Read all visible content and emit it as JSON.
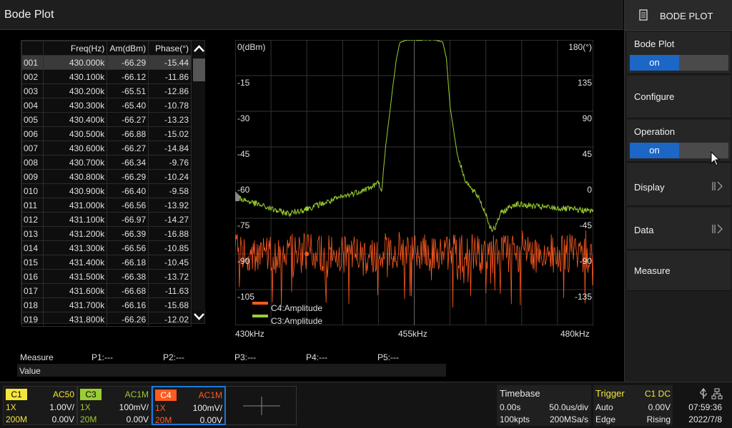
{
  "title": "Bode Plot",
  "table": {
    "headers": [
      "",
      "Freq(Hz)",
      "Am(dBm)",
      "Phase(°)"
    ],
    "rows": [
      [
        "001",
        "430.000k",
        "-66.29",
        "-15.44"
      ],
      [
        "002",
        "430.100k",
        "-66.12",
        "-11.86"
      ],
      [
        "003",
        "430.200k",
        "-65.51",
        "-12.86"
      ],
      [
        "004",
        "430.300k",
        "-65.40",
        "-10.78"
      ],
      [
        "005",
        "430.400k",
        "-66.27",
        "-13.23"
      ],
      [
        "006",
        "430.500k",
        "-66.88",
        "-15.02"
      ],
      [
        "007",
        "430.600k",
        "-66.27",
        "-14.84"
      ],
      [
        "008",
        "430.700k",
        "-66.34",
        "-9.76"
      ],
      [
        "009",
        "430.800k",
        "-66.29",
        "-10.24"
      ],
      [
        "010",
        "430.900k",
        "-66.40",
        "-9.58"
      ],
      [
        "011",
        "431.000k",
        "-66.56",
        "-13.92"
      ],
      [
        "012",
        "431.100k",
        "-66.97",
        "-14.27"
      ],
      [
        "013",
        "431.200k",
        "-66.39",
        "-16.88"
      ],
      [
        "014",
        "431.300k",
        "-66.56",
        "-10.85"
      ],
      [
        "015",
        "431.400k",
        "-66.18",
        "-10.45"
      ],
      [
        "016",
        "431.500k",
        "-66.38",
        "-13.72"
      ],
      [
        "017",
        "431.600k",
        "-66.68",
        "-11.63"
      ],
      [
        "018",
        "431.700k",
        "-66.16",
        "-15.68"
      ],
      [
        "019",
        "431.800k",
        "-66.26",
        "-12.02"
      ]
    ]
  },
  "chart_data": {
    "type": "line",
    "x_labels": [
      "430kHz",
      "455kHz",
      "480kHz"
    ],
    "xlim_khz": [
      430,
      480
    ],
    "y_left_unit": "(dBm)",
    "y_left_ticks": [
      "0",
      "-15",
      "-30",
      "-45",
      "-60",
      "-75",
      "-90",
      "-105"
    ],
    "y_right_unit": "(°)",
    "y_right_ticks": [
      "180",
      "135",
      "90",
      "45",
      "0",
      "-45",
      "-90",
      "-135"
    ],
    "ylim_dbm": [
      -120,
      0
    ],
    "ylim_deg": [
      -180,
      180
    ],
    "grid": true,
    "legend_position": "bottom-left",
    "series": [
      {
        "name": "C3:Amplitude",
        "color": "#9acd32",
        "axis": "dBm",
        "x_khz": [
          430,
          433,
          436,
          437.5,
          440,
          443,
          445,
          449,
          450,
          450.5,
          451,
          452,
          452.5,
          453,
          454,
          456,
          458,
          459,
          459.5,
          460,
          461,
          462,
          463,
          464,
          464.5,
          465,
          465.5,
          466,
          466.5,
          467,
          469,
          472,
          476,
          480
        ],
        "y_dbm": [
          -66,
          -69,
          -72,
          -73,
          -71,
          -68,
          -66,
          -62,
          -60,
          -63,
          -45,
          -20,
          -8,
          -1,
          0,
          0,
          0,
          -1,
          -8,
          -28,
          -48,
          -58,
          -63,
          -66,
          -70,
          -73,
          -78,
          -80,
          -78,
          -73,
          -69,
          -70,
          -71,
          -72
        ]
      },
      {
        "name": "C4:Amplitude",
        "color": "#ff5a1f",
        "axis": "deg",
        "mean_deg": -90,
        "spread_deg": 25,
        "min_deg": -158,
        "max_deg": -60
      }
    ]
  },
  "measure": {
    "label": "Measure",
    "p1": "P1:---",
    "p2": "P2:---",
    "p3": "P3:---",
    "p4": "P4:---",
    "p5": "P5:---",
    "value": "Value"
  },
  "menu": {
    "header": "BODE PLOT",
    "bode_plot": "Bode Plot",
    "bode_state": "on",
    "configure": "Configure",
    "operation": "Operation",
    "operation_state": "on",
    "display": "Display",
    "data": "Data",
    "measure": "Measure"
  },
  "channels": [
    {
      "name": "C1",
      "coupling": "AC50",
      "probe": "1X",
      "scale": "1.00V/",
      "bw": "200M",
      "offset": "0.00V",
      "color": "#f5e63a",
      "text_color": "#f5e63a"
    },
    {
      "name": "C3",
      "coupling": "AC1M",
      "probe": "1X",
      "scale": "100mV/",
      "bw": "20M",
      "offset": "0.00V",
      "color": "#9acd32",
      "text_color": "#9acd32"
    },
    {
      "name": "C4",
      "coupling": "AC1M",
      "probe": "1X",
      "scale": "100mV/",
      "bw": "20M",
      "offset": "0.00V",
      "color": "#ff5a1f",
      "text_color": "#ff5a1f"
    }
  ],
  "timebase": {
    "label": "Timebase",
    "delay": "0.00s",
    "scale": "50.0us/div",
    "points": "100kpts",
    "rate": "200MSa/s"
  },
  "trigger": {
    "label": "Trigger",
    "source": "C1 DC",
    "mode": "Auto",
    "level": "0.00V",
    "type": "Edge",
    "slope": "Rising"
  },
  "clock": {
    "time": "07:59:36",
    "date": "2022/7/8"
  }
}
